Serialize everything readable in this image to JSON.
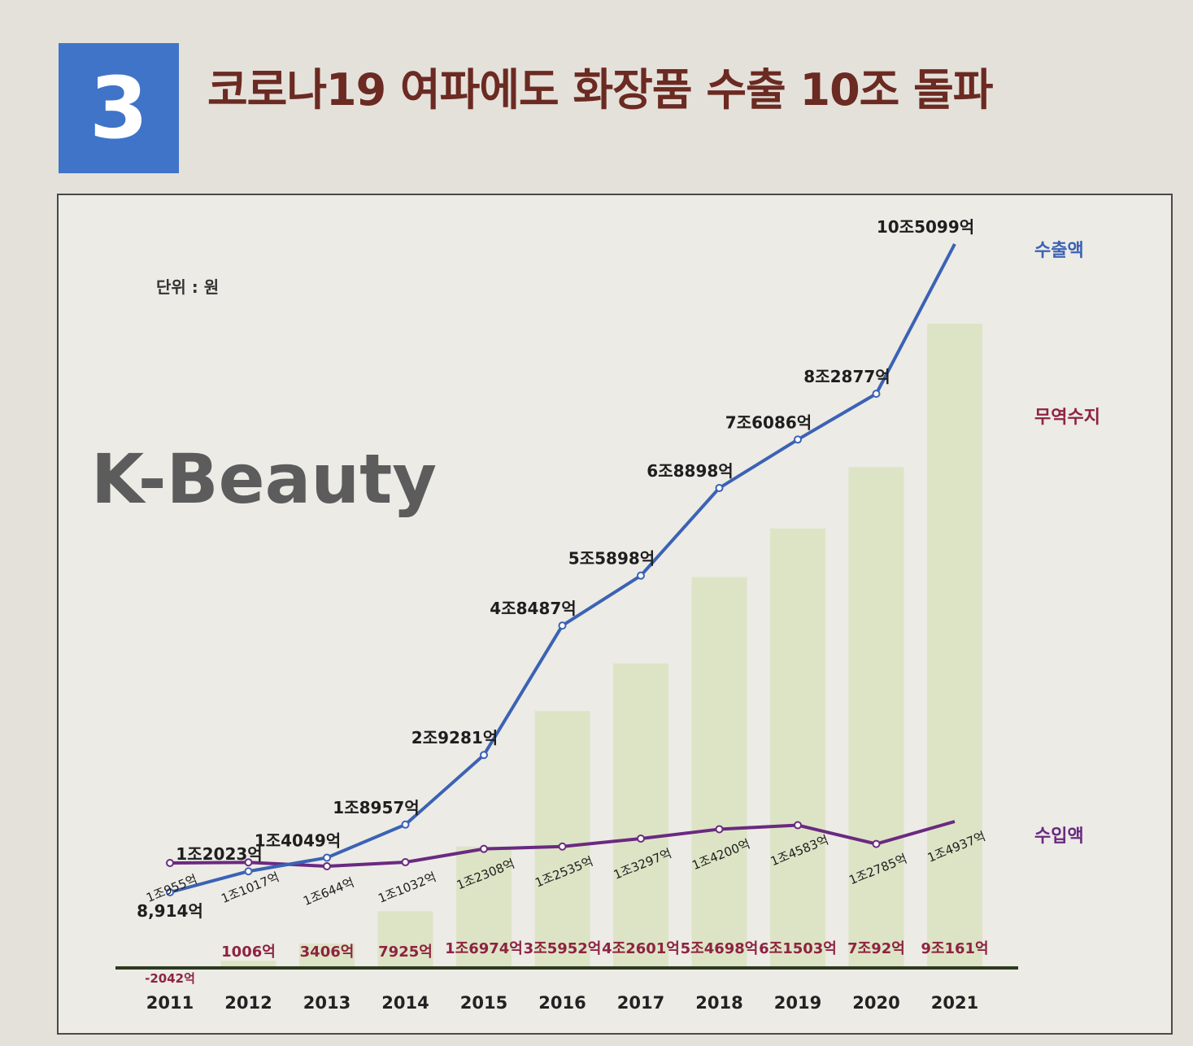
{
  "header": {
    "number": "3",
    "title": "코로나19 여파에도 화장품 수출 10조 돌파"
  },
  "chart_data": {
    "type": "bar",
    "unit_label": "단위 : 원",
    "watermark": "K-Beauty",
    "categories": [
      "2011",
      "2012",
      "2013",
      "2014",
      "2015",
      "2016",
      "2017",
      "2018",
      "2019",
      "2020",
      "2021"
    ],
    "series": [
      {
        "name": "수출액",
        "type": "line",
        "color": "#3b62b4",
        "values": [
          8914,
          12023,
          14049,
          18957,
          29281,
          48487,
          55898,
          68898,
          76086,
          82877,
          105099
        ],
        "labels": [
          "8,914억",
          "1조2023억",
          "1조4049억",
          "1조8957억",
          "2조9281억",
          "4조8487억",
          "5조5898억",
          "6조8898억",
          "7조6086억",
          "8조2877억",
          "10조5099억"
        ]
      },
      {
        "name": "무역수지",
        "type": "bar",
        "color": "#dde4c6",
        "values": [
          -2042,
          1006,
          3406,
          7925,
          16974,
          35952,
          42601,
          54698,
          61503,
          70092,
          90161
        ],
        "labels": [
          "-2042억",
          "1006억",
          "3406억",
          "7925억",
          "1조6974억",
          "3조5952억",
          "4조2601억",
          "5조4698억",
          "6조1503억",
          "7조92억",
          "9조161억"
        ]
      },
      {
        "name": "수입액",
        "type": "line",
        "color": "#6a2a80",
        "values": [
          10955,
          11017,
          10644,
          11032,
          12308,
          12535,
          13297,
          14200,
          14583,
          12785,
          14937
        ],
        "labels": [
          "1조955억",
          "1조1017억",
          "1조644억",
          "1조1032억",
          "1조2308억",
          "1조2535억",
          "1조3297억",
          "1조4200억",
          "1조4583억",
          "1조2785억",
          "1조4937억"
        ]
      }
    ],
    "colors": {
      "label_export": "#1e1e1e",
      "label_balance": "#8e2340",
      "label_import": "#1e1e1e",
      "baseline": "#2d3a1e"
    }
  }
}
